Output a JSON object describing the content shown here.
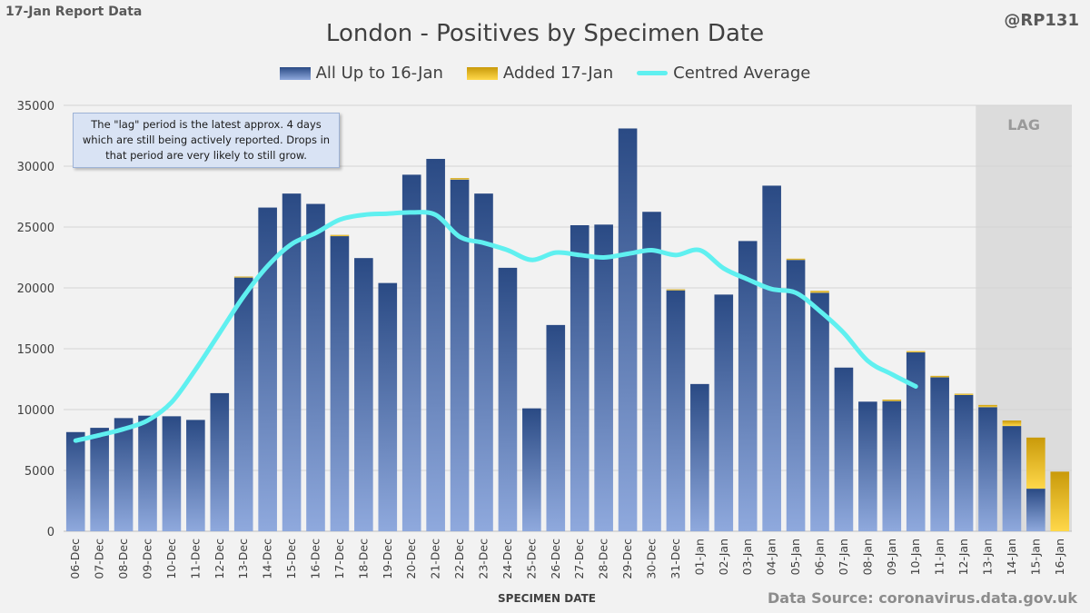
{
  "header": {
    "report_label": "17-Jan Report Data",
    "handle": "@RP131"
  },
  "note": "The \"lag\" period is the latest approx. 4 days which are still being actively reported. Drops in that period are very likely to still grow.",
  "source": "Data Source: coronavirus.data.gov.uk",
  "lag_label": "LAG",
  "colors": {
    "background": "#f2f2f2",
    "bar_top": "#2a4a84",
    "bar_bottom": "#8fa9dd",
    "added_top": "#c99a0a",
    "added_bottom": "#ffd84a",
    "average_line": "#5ff0f0",
    "lag_shade": "#dcdcdc"
  },
  "chart_data": {
    "type": "bar",
    "title": "London - Positives by Specimen Date",
    "xlabel": "SPECIMEN DATE",
    "ylabel": "",
    "ylim": [
      0,
      35000
    ],
    "yticks": [
      0,
      5000,
      10000,
      15000,
      20000,
      25000,
      30000,
      35000
    ],
    "stacked": true,
    "categories": [
      "06-Dec",
      "07-Dec",
      "08-Dec",
      "09-Dec",
      "10-Dec",
      "11-Dec",
      "12-Dec",
      "13-Dec",
      "14-Dec",
      "15-Dec",
      "16-Dec",
      "17-Dec",
      "18-Dec",
      "19-Dec",
      "20-Dec",
      "21-Dec",
      "22-Dec",
      "23-Dec",
      "24-Dec",
      "25-Dec",
      "26-Dec",
      "27-Dec",
      "28-Dec",
      "29-Dec",
      "30-Dec",
      "31-Dec",
      "01-Jan",
      "02-Jan",
      "03-Jan",
      "04-Jan",
      "05-Jan",
      "06-Jan",
      "07-Jan",
      "08-Jan",
      "09-Jan",
      "10-Jan",
      "11-Jan",
      "12-Jan",
      "13-Jan",
      "14-Jan",
      "15-Jan",
      "16-Jan"
    ],
    "series": [
      {
        "name": "All Up to 16-Jan",
        "values": [
          8150,
          8500,
          9300,
          9500,
          9450,
          9150,
          11350,
          20850,
          26600,
          27750,
          26900,
          24250,
          22450,
          20400,
          29300,
          30600,
          28900,
          27750,
          21650,
          10100,
          16950,
          25150,
          25200,
          33100,
          26250,
          19800,
          12100,
          19450,
          23850,
          28400,
          22300,
          19600,
          13450,
          10650,
          10700,
          14700,
          12650,
          11200,
          10200,
          8650,
          3500,
          0
        ]
      },
      {
        "name": "Added 17-Jan",
        "values": [
          0,
          0,
          0,
          0,
          0,
          0,
          0,
          80,
          0,
          0,
          0,
          100,
          0,
          0,
          0,
          0,
          120,
          0,
          0,
          0,
          0,
          0,
          0,
          0,
          0,
          80,
          0,
          0,
          0,
          0,
          100,
          150,
          0,
          0,
          120,
          100,
          120,
          100,
          180,
          450,
          4200,
          4900
        ]
      },
      {
        "name": "Centred Average",
        "type": "line",
        "values": [
          7450,
          7900,
          8400,
          9100,
          10600,
          13300,
          16300,
          19300,
          21800,
          23600,
          24500,
          25600,
          26000,
          26100,
          26200,
          26000,
          24200,
          23700,
          23100,
          22300,
          22900,
          22700,
          22500,
          22800,
          23100,
          22700,
          23100,
          21600,
          20700,
          19900,
          19600,
          18100,
          16300,
          14000,
          12900,
          11900,
          null,
          null,
          null,
          null,
          null,
          null
        ]
      }
    ],
    "lag_region": {
      "from": "13-Jan",
      "to": "16-Jan"
    },
    "legend_position": "top-center"
  }
}
